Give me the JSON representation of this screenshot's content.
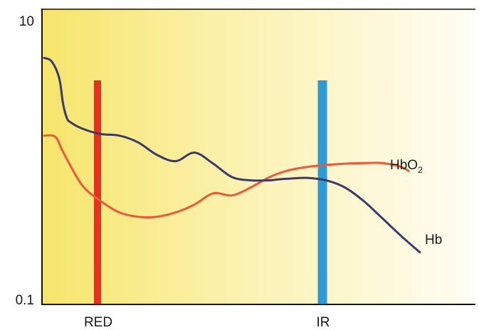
{
  "chart_data": {
    "type": "line",
    "title": "",
    "xlabel": "",
    "ylabel": "",
    "y_scale": "log",
    "ylim": [
      0.1,
      10
    ],
    "y_ticks": [
      "10",
      "0.1"
    ],
    "x_markers": [
      {
        "label": "RED",
        "color": "#e8321f"
      },
      {
        "label": "IR",
        "color": "#2e9bd6"
      }
    ],
    "series": [
      {
        "name": "Hb",
        "color": "#3b3a6b",
        "x": [
          0,
          2,
          4,
          5,
          6,
          7,
          10,
          15,
          20,
          25,
          30,
          35,
          40,
          45,
          50,
          55,
          60,
          62,
          65,
          70,
          75,
          80,
          85,
          90,
          95,
          100
        ],
        "y": [
          5.4,
          5.1,
          3.9,
          2.6,
          2.05,
          1.9,
          1.72,
          1.57,
          1.53,
          1.37,
          1.12,
          1.01,
          1.16,
          0.97,
          0.78,
          0.74,
          0.74,
          0.75,
          0.76,
          0.77,
          0.74,
          0.66,
          0.53,
          0.4,
          0.3,
          0.23
        ]
      },
      {
        "name": "HbO2",
        "color": "#f0583a",
        "x": [
          0,
          3,
          5,
          10,
          15,
          20,
          25,
          30,
          35,
          40,
          45,
          50,
          55,
          60,
          65,
          70,
          75,
          80,
          85,
          90,
          95,
          97
        ],
        "y": [
          1.53,
          1.5,
          1.18,
          0.69,
          0.53,
          0.44,
          0.41,
          0.41,
          0.44,
          0.5,
          0.6,
          0.58,
          0.66,
          0.78,
          0.87,
          0.92,
          0.95,
          0.97,
          0.98,
          0.98,
          0.92,
          0.86
        ]
      }
    ]
  },
  "legend": {
    "hb_label": "Hb",
    "hbo2_base": "HbO",
    "hbo2_sub": "2"
  }
}
